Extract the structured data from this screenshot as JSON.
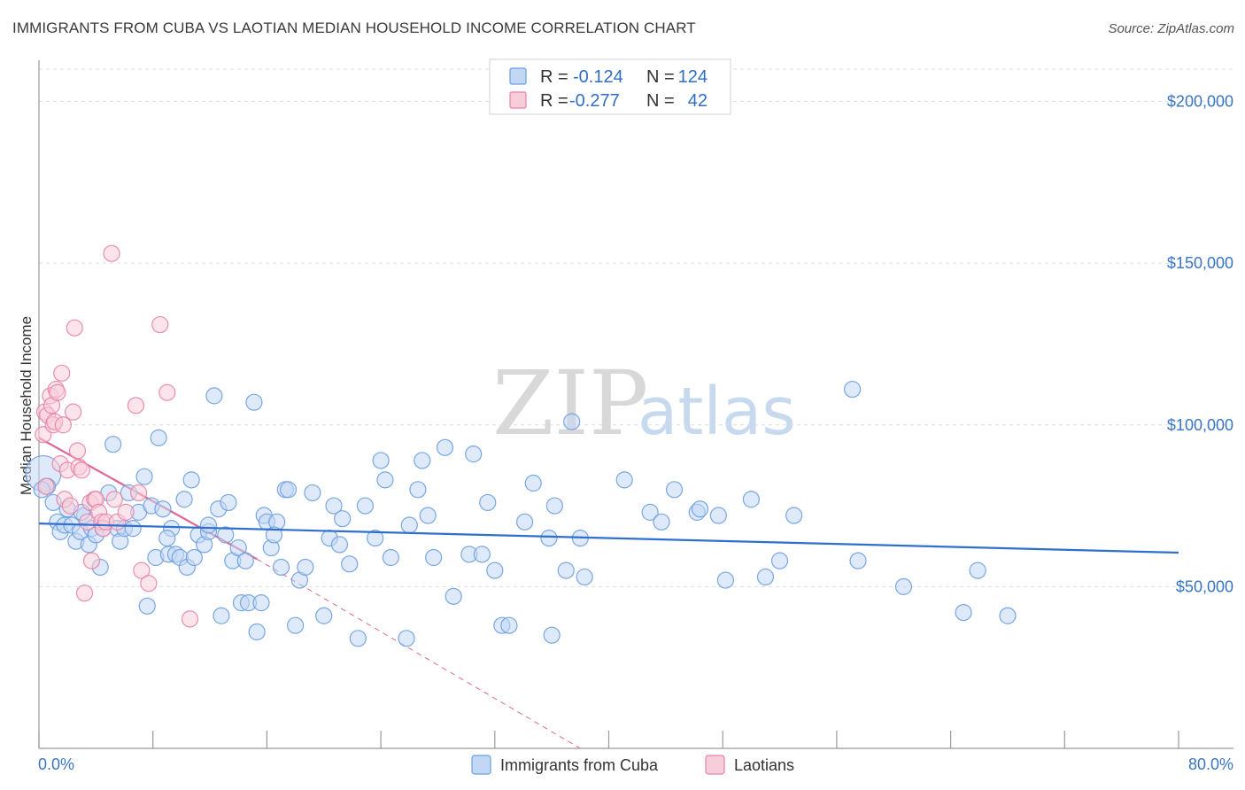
{
  "title": "IMMIGRANTS FROM CUBA VS LAOTIAN MEDIAN HOUSEHOLD INCOME CORRELATION CHART",
  "source": "Source: ZipAtlas.com",
  "watermark": {
    "part1": "ZIP",
    "part2": "atlas"
  },
  "colors": {
    "blue": "#6a9fe0",
    "blue_fill": "#c2d7f4",
    "blue_line": "#2f6fd0",
    "pink": "#e882a8",
    "pink_fill": "#f7cdd9",
    "pink_line": "#e06695",
    "tick": "#3a75c4"
  },
  "legend_top": {
    "rows": [
      {
        "r_label": "R =",
        "r_value": "-0.124",
        "n_label": "N =",
        "n_value": "124"
      },
      {
        "r_label": "R =",
        "r_value": "-0.277",
        "n_label": "N =",
        "n_value": "42"
      }
    ]
  },
  "chart_data": {
    "type": "scatter",
    "xlabel": "",
    "ylabel": "Median Household Income",
    "x_tick_labels": [
      "0.0%",
      "80.0%"
    ],
    "y_tick_labels": [
      "$50,000",
      "$100,000",
      "$150,000",
      "$200,000"
    ],
    "y_ticks": [
      50000,
      100000,
      150000,
      200000
    ],
    "xlim": [
      0,
      80
    ],
    "ylim": [
      0,
      210000
    ],
    "grid": true,
    "legend": {
      "position": "bottom-center",
      "entries": [
        "Immigrants from Cuba",
        "Laotians"
      ]
    },
    "series": [
      {
        "name": "Immigrants from Cuba",
        "r": -0.124,
        "n": 124,
        "trend": {
          "x": [
            0,
            80
          ],
          "y": [
            69500,
            60500
          ],
          "dashed_extension": false
        },
        "points": [
          [
            0.3,
            85000
          ],
          [
            0.6,
            81000
          ],
          [
            1.0,
            76000
          ],
          [
            1.3,
            70000
          ],
          [
            1.5,
            67000
          ],
          [
            1.8,
            69000
          ],
          [
            2.0,
            74000
          ],
          [
            2.3,
            69000
          ],
          [
            2.6,
            64000
          ],
          [
            2.9,
            67000
          ],
          [
            3.2,
            72000
          ],
          [
            3.5,
            63000
          ],
          [
            3.7,
            68000
          ],
          [
            4.0,
            66000
          ],
          [
            4.3,
            56000
          ],
          [
            4.5,
            68000
          ],
          [
            4.9,
            79000
          ],
          [
            5.2,
            94000
          ],
          [
            5.5,
            68000
          ],
          [
            5.7,
            64000
          ],
          [
            6.0,
            68000
          ],
          [
            6.3,
            79000
          ],
          [
            6.6,
            68000
          ],
          [
            7.0,
            73000
          ],
          [
            7.4,
            84000
          ],
          [
            7.6,
            44000
          ],
          [
            7.9,
            75000
          ],
          [
            8.2,
            59000
          ],
          [
            8.4,
            96000
          ],
          [
            8.7,
            74000
          ],
          [
            9.1,
            60000
          ],
          [
            9.3,
            68000
          ],
          [
            9.6,
            60000
          ],
          [
            9.9,
            59000
          ],
          [
            10.2,
            77000
          ],
          [
            10.4,
            56000
          ],
          [
            10.7,
            83000
          ],
          [
            10.9,
            59000
          ],
          [
            11.2,
            66000
          ],
          [
            11.6,
            63000
          ],
          [
            11.9,
            67000
          ],
          [
            11.9,
            69000
          ],
          [
            12.3,
            109000
          ],
          [
            12.6,
            74000
          ],
          [
            12.8,
            41000
          ],
          [
            13.1,
            66000
          ],
          [
            13.3,
            76000
          ],
          [
            13.6,
            58000
          ],
          [
            14.0,
            62000
          ],
          [
            14.2,
            45000
          ],
          [
            14.5,
            58000
          ],
          [
            14.7,
            45000
          ],
          [
            15.1,
            107000
          ],
          [
            15.3,
            36000
          ],
          [
            15.6,
            45000
          ],
          [
            15.8,
            72000
          ],
          [
            16.0,
            70000
          ],
          [
            16.3,
            62000
          ],
          [
            16.7,
            70000
          ],
          [
            17.0,
            56000
          ],
          [
            17.3,
            80000
          ],
          [
            17.5,
            80000
          ],
          [
            18.0,
            38000
          ],
          [
            18.3,
            52000
          ],
          [
            18.7,
            56000
          ],
          [
            19.2,
            79000
          ],
          [
            20.0,
            41000
          ],
          [
            20.4,
            65000
          ],
          [
            20.7,
            75000
          ],
          [
            21.1,
            63000
          ],
          [
            21.3,
            71000
          ],
          [
            21.8,
            57000
          ],
          [
            22.4,
            34000
          ],
          [
            22.9,
            75000
          ],
          [
            23.6,
            65000
          ],
          [
            24.0,
            89000
          ],
          [
            24.3,
            83000
          ],
          [
            24.7,
            59000
          ],
          [
            25.8,
            34000
          ],
          [
            26.0,
            69000
          ],
          [
            26.6,
            80000
          ],
          [
            26.9,
            89000
          ],
          [
            27.3,
            72000
          ],
          [
            27.7,
            59000
          ],
          [
            28.5,
            93000
          ],
          [
            29.1,
            47000
          ],
          [
            30.2,
            60000
          ],
          [
            30.5,
            91000
          ],
          [
            31.1,
            60000
          ],
          [
            31.5,
            76000
          ],
          [
            32.0,
            55000
          ],
          [
            32.5,
            38000
          ],
          [
            33.0,
            38000
          ],
          [
            34.1,
            70000
          ],
          [
            34.7,
            82000
          ],
          [
            35.8,
            65000
          ],
          [
            36.0,
            35000
          ],
          [
            36.2,
            75000
          ],
          [
            37.0,
            55000
          ],
          [
            37.4,
            101000
          ],
          [
            38.0,
            65000
          ],
          [
            38.3,
            53000
          ],
          [
            41.1,
            83000
          ],
          [
            42.9,
            73000
          ],
          [
            43.7,
            70000
          ],
          [
            44.6,
            80000
          ],
          [
            46.2,
            73000
          ],
          [
            46.4,
            74000
          ],
          [
            47.7,
            72000
          ],
          [
            48.2,
            52000
          ],
          [
            50.0,
            77000
          ],
          [
            51.0,
            53000
          ],
          [
            52.0,
            58000
          ],
          [
            53.0,
            72000
          ],
          [
            57.1,
            111000
          ],
          [
            57.5,
            58000
          ],
          [
            60.7,
            50000
          ],
          [
            64.9,
            42000
          ],
          [
            65.9,
            55000
          ],
          [
            68.0,
            41000
          ],
          [
            0.2,
            80000
          ],
          [
            3.0,
            73000
          ],
          [
            9.0,
            65000
          ],
          [
            16.5,
            66000
          ]
        ]
      },
      {
        "name": "Laotians",
        "r": -0.277,
        "n": 42,
        "trend": {
          "x": [
            0,
            15.3
          ],
          "y": [
            96000,
            58500
          ],
          "dashed_extension": true,
          "dashed_end": [
            38,
            0
          ]
        },
        "points": [
          [
            0.3,
            97000
          ],
          [
            0.4,
            104000
          ],
          [
            0.5,
            81000
          ],
          [
            0.6,
            103000
          ],
          [
            0.8,
            109000
          ],
          [
            0.9,
            106000
          ],
          [
            1.0,
            100000
          ],
          [
            1.1,
            101000
          ],
          [
            1.2,
            111000
          ],
          [
            1.3,
            110000
          ],
          [
            1.5,
            88000
          ],
          [
            1.6,
            116000
          ],
          [
            1.7,
            100000
          ],
          [
            1.8,
            77000
          ],
          [
            2.0,
            86000
          ],
          [
            2.2,
            75000
          ],
          [
            2.4,
            104000
          ],
          [
            2.5,
            130000
          ],
          [
            2.7,
            92000
          ],
          [
            2.8,
            87000
          ],
          [
            3.0,
            86000
          ],
          [
            3.2,
            48000
          ],
          [
            3.4,
            70000
          ],
          [
            3.6,
            76000
          ],
          [
            3.7,
            58000
          ],
          [
            3.9,
            77000
          ],
          [
            4.0,
            77000
          ],
          [
            4.2,
            73000
          ],
          [
            4.4,
            70000
          ],
          [
            4.5,
            68000
          ],
          [
            4.7,
            70000
          ],
          [
            5.1,
            153000
          ],
          [
            5.3,
            77000
          ],
          [
            5.5,
            70000
          ],
          [
            6.1,
            73000
          ],
          [
            6.8,
            106000
          ],
          [
            7.0,
            79000
          ],
          [
            7.2,
            55000
          ],
          [
            7.7,
            51000
          ],
          [
            8.5,
            131000
          ],
          [
            9.0,
            110000
          ],
          [
            10.6,
            40000
          ]
        ]
      }
    ]
  }
}
